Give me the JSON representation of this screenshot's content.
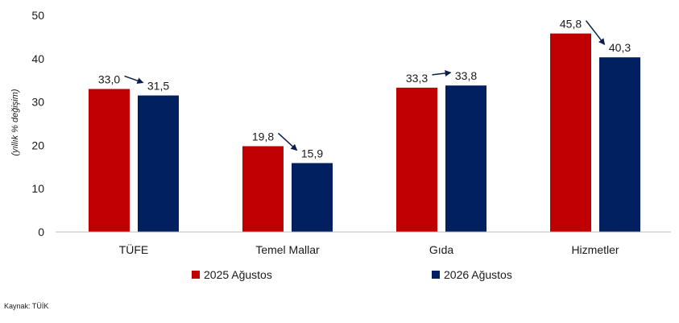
{
  "chart_data": {
    "type": "bar",
    "ylabel": "(yıllık % değişim)",
    "ylim": [
      0,
      50
    ],
    "yticks": [
      0,
      10,
      20,
      30,
      40,
      50
    ],
    "categories": [
      "TÜFE",
      "Temel Mallar",
      "Gıda",
      "Hizmetler"
    ],
    "series": [
      {
        "name": "2025 Ağustos",
        "values": [
          33.0,
          19.8,
          33.3,
          45.8
        ],
        "labels": [
          "33,0",
          "19,8",
          "33,3",
          "45,8"
        ],
        "color": "#c00000"
      },
      {
        "name": "2026 Ağustos",
        "values": [
          31.5,
          15.9,
          33.8,
          40.3
        ],
        "labels": [
          "31,5",
          "15,9",
          "33,8",
          "40,3"
        ],
        "color": "#002060"
      }
    ],
    "arrows": "from 2025 label to 2026 label",
    "legend": "bottom",
    "grid": false
  },
  "source": "Kaynak: TÜİK"
}
